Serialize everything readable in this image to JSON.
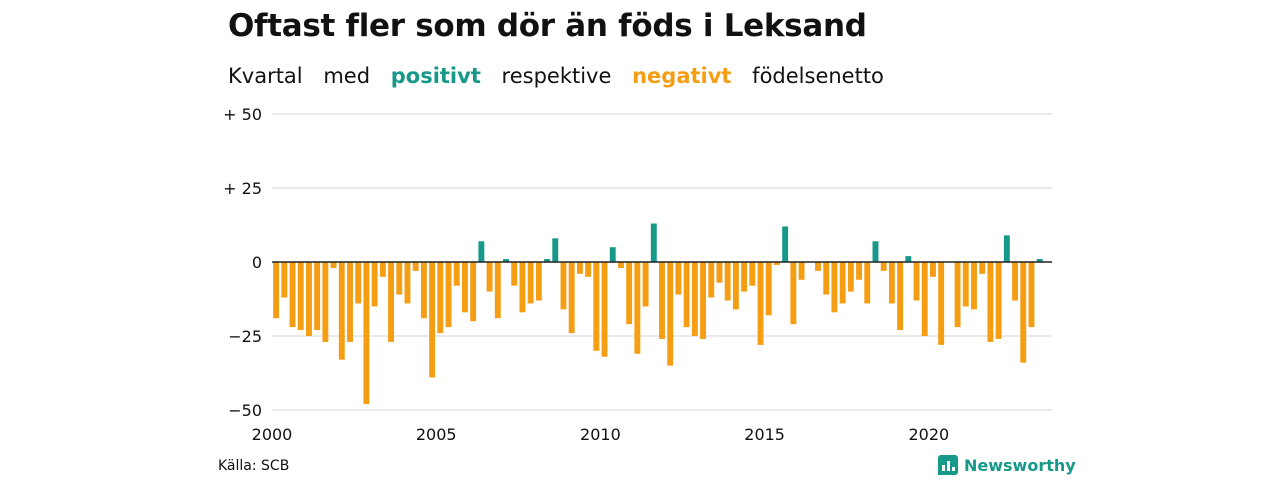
{
  "header": {
    "title": "Oftast fler som dör än föds i Leksand",
    "subtitle_parts": [
      "Kvartal",
      "med",
      "positivt",
      "respektive",
      "negativt",
      "födelsenetto"
    ]
  },
  "footer": {
    "source": "Källa: SCB",
    "brand": "Newsworthy"
  },
  "colors": {
    "positive": "#17998a",
    "negative": "#f59e14",
    "grid": "#dddddd",
    "axis": "#222222"
  },
  "chart_data": {
    "type": "bar",
    "title": "Oftast fler som dör än föds i Leksand",
    "subtitle": "Kvartal med positivt respektive negativt födelsenetto",
    "xlabel": "",
    "ylabel": "",
    "ylim": [
      -50,
      50
    ],
    "yticks": [
      50,
      25,
      0,
      -25,
      -50
    ],
    "ytick_labels": [
      "+ 50",
      "+ 25",
      "0",
      "−25",
      "−50"
    ],
    "xticks": [
      2000,
      2005,
      2010,
      2015,
      2020
    ],
    "x_start": "2000-Q1",
    "x_end": "2023-Q2",
    "grid": true,
    "values": [
      -19,
      -12,
      -22,
      -23,
      -25,
      -23,
      -27,
      -2,
      -33,
      -27,
      -14,
      -48,
      -15,
      -5,
      -27,
      -11,
      -14,
      -3,
      -19,
      -39,
      -24,
      -22,
      -8,
      -17,
      -20,
      7,
      -10,
      -19,
      1,
      -8,
      -17,
      -14,
      -13,
      1,
      8,
      -16,
      -24,
      -4,
      -5,
      -30,
      -32,
      5,
      -2,
      -21,
      -31,
      -15,
      13,
      -26,
      -35,
      -11,
      -22,
      -25,
      -26,
      -12,
      -7,
      -13,
      -16,
      -10,
      -8,
      -28,
      -18,
      -1,
      12,
      -21,
      -6,
      0,
      -3,
      -11,
      -17,
      -14,
      -10,
      -6,
      -14,
      7,
      -3,
      -14,
      -23,
      2,
      -13,
      -25,
      -5,
      -28,
      0,
      -22,
      -15,
      -16,
      -4,
      -27,
      -26,
      9,
      -13,
      -34,
      -22,
      1
    ]
  }
}
